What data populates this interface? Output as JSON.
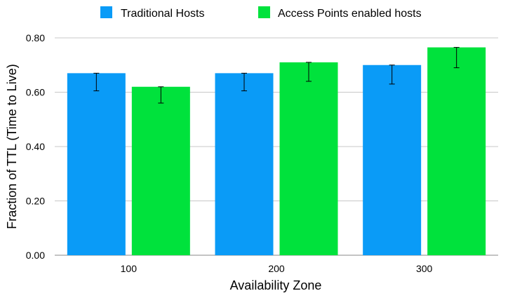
{
  "chart_data": {
    "type": "bar",
    "title": "",
    "xlabel": "Availability Zone",
    "ylabel": "Fraction of TTL (Time to Live)",
    "categories": [
      "100",
      "200",
      "300"
    ],
    "ylim": [
      0,
      0.8
    ],
    "yticks": [
      "0.00",
      "0.20",
      "0.40",
      "0.60",
      "0.80"
    ],
    "grid": true,
    "legend_position": "top",
    "series": [
      {
        "name": "Traditional Hosts",
        "color": "#0a9bf7",
        "values": [
          0.67,
          0.67,
          0.7
        ],
        "error_low": [
          0.605,
          0.605,
          0.63
        ],
        "error_high": [
          0.67,
          0.67,
          0.7
        ]
      },
      {
        "name": "Access Points enabled hosts",
        "color": "#00e23c",
        "values": [
          0.62,
          0.71,
          0.765
        ],
        "error_low": [
          0.56,
          0.64,
          0.69
        ],
        "error_high": [
          0.62,
          0.71,
          0.765
        ]
      }
    ]
  }
}
